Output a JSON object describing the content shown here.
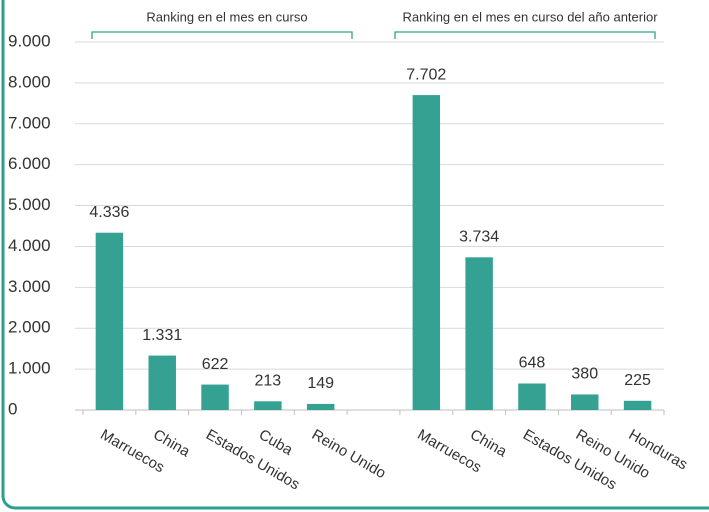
{
  "chart_data": {
    "type": "bar",
    "annotations": [
      "Ranking en el mes en curso",
      "Ranking en el mes en curso del año anterior"
    ],
    "categories": [
      "Marruecos",
      "China",
      "Estados Unidos",
      "Cuba",
      "Reino Unido",
      null,
      "Marruecos",
      "China",
      "Estados Unidos",
      "Reino Unido",
      "Honduras"
    ],
    "values": [
      4336,
      1331,
      622,
      213,
      149,
      null,
      7702,
      3734,
      648,
      380,
      225
    ],
    "value_labels": [
      "4.336",
      "1.331",
      "622",
      "213",
      "149",
      null,
      "7.702",
      "3.734",
      "648",
      "380",
      "225"
    ],
    "color": "#34a193",
    "ylim": [
      0,
      9000
    ],
    "yticks": [
      0,
      {
        "value": 1000,
        "label": "1.000"
      },
      {
        "value": 2000,
        "label": "2.000"
      },
      {
        "value": 3000,
        "label": "3.000"
      },
      {
        "value": 4000,
        "label": "4.000"
      },
      {
        "value": 5000,
        "label": "5.000"
      },
      {
        "value": 6000,
        "label": "6.000"
      },
      {
        "value": 7000,
        "label": "7.000"
      },
      {
        "value": 8000,
        "label": "8.000"
      },
      {
        "value": 9000,
        "label": "9.000"
      }
    ],
    "grid": true
  }
}
